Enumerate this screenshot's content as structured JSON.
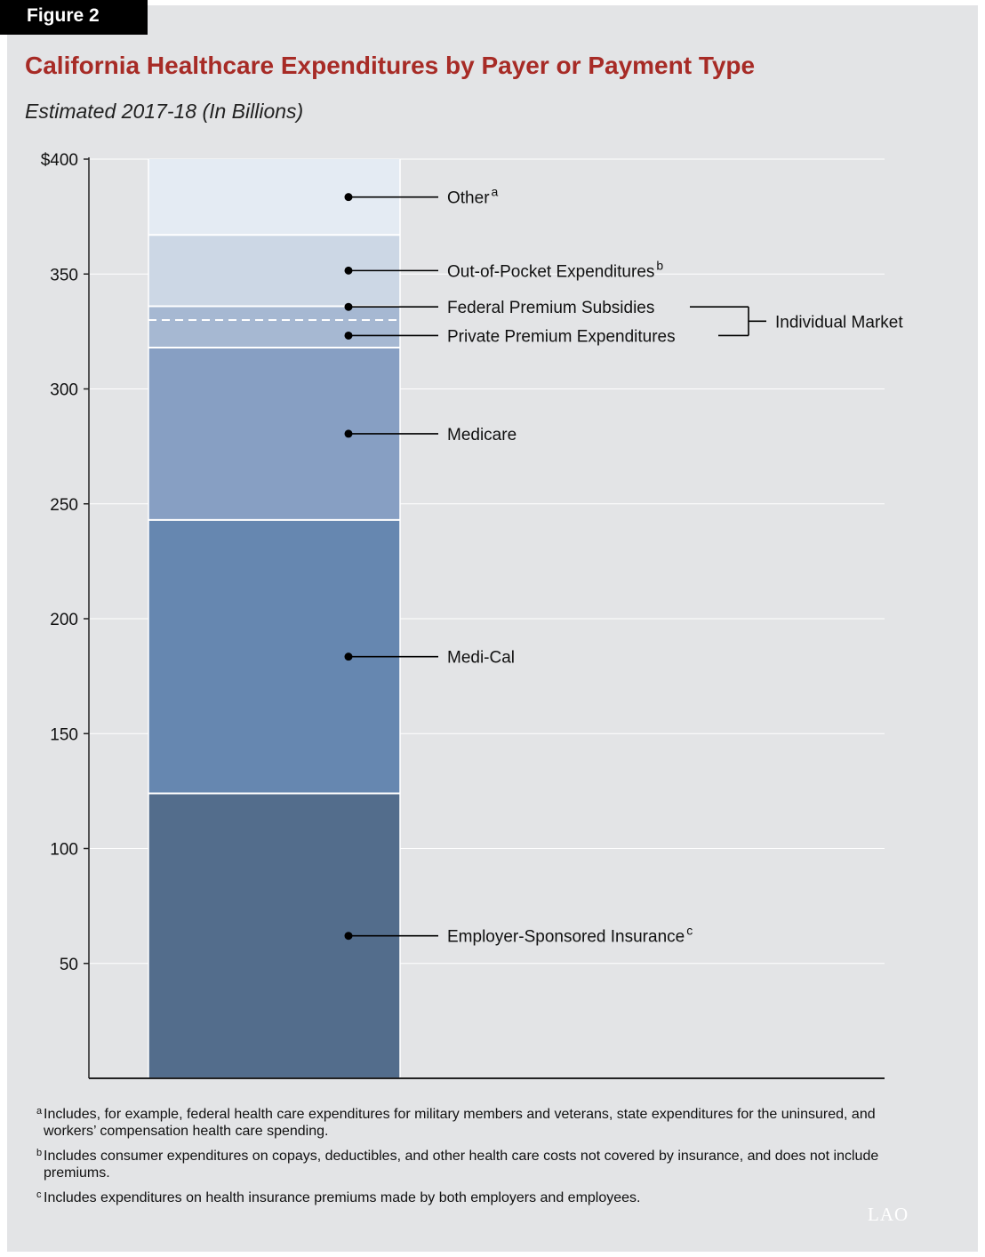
{
  "figure": {
    "tab": "Figure 2"
  },
  "header": {
    "title": "California Healthcare Expenditures by Payer or Payment Type",
    "subtitle": "Estimated 2017-18 (In Billions)"
  },
  "chart_data": {
    "type": "bar",
    "stacked": true,
    "categories": [
      ""
    ],
    "ylim": [
      0,
      400
    ],
    "yticks": [
      {
        "value": 400,
        "label": "$400"
      },
      {
        "value": 350,
        "label": "350"
      },
      {
        "value": 300,
        "label": "300"
      },
      {
        "value": 250,
        "label": "250"
      },
      {
        "value": 200,
        "label": "200"
      },
      {
        "value": 150,
        "label": "150"
      },
      {
        "value": 100,
        "label": "100"
      },
      {
        "value": 50,
        "label": "50"
      }
    ],
    "grid": true,
    "series": [
      {
        "name": "Employer-Sponsored Insurance",
        "sup": "c",
        "values": [
          124
        ],
        "color": "#536d8c"
      },
      {
        "name": "Medi-Cal",
        "sup": "",
        "values": [
          119
        ],
        "color": "#6687b0"
      },
      {
        "name": "Medicare",
        "sup": "",
        "values": [
          75
        ],
        "color": "#879fc3"
      },
      {
        "name": "Private Premium Expenditures",
        "sup": "",
        "values": [
          12
        ],
        "color": "#a6b8d2"
      },
      {
        "name": "Federal Premium Subsidies",
        "sup": "",
        "values": [
          6
        ],
        "color": "#a6b8d2"
      },
      {
        "name": "Out-of-Pocket Expenditures",
        "sup": "b",
        "values": [
          31
        ],
        "color": "#ccd7e5"
      },
      {
        "name": "Other",
        "sup": "a",
        "values": [
          33
        ],
        "color": "#e4ebf3"
      }
    ],
    "group_label": {
      "text": "Individual Market",
      "members": [
        "Federal Premium Subsidies",
        "Private Premium Expenditures"
      ]
    }
  },
  "notes": [
    {
      "mark": "a",
      "text": "Includes, for example, federal health care expenditures for military members and veterans, state expenditures for the uninsured, and workers’ compensation health care spending."
    },
    {
      "mark": "b",
      "text": "Includes consumer expenditures on copays, deductibles, and other health care costs not covered by insurance, and does not include premiums."
    },
    {
      "mark": "c",
      "text": "Includes expenditures on health insurance premiums made by both employers and employees."
    }
  ],
  "logo": {
    "text": "LAO"
  }
}
